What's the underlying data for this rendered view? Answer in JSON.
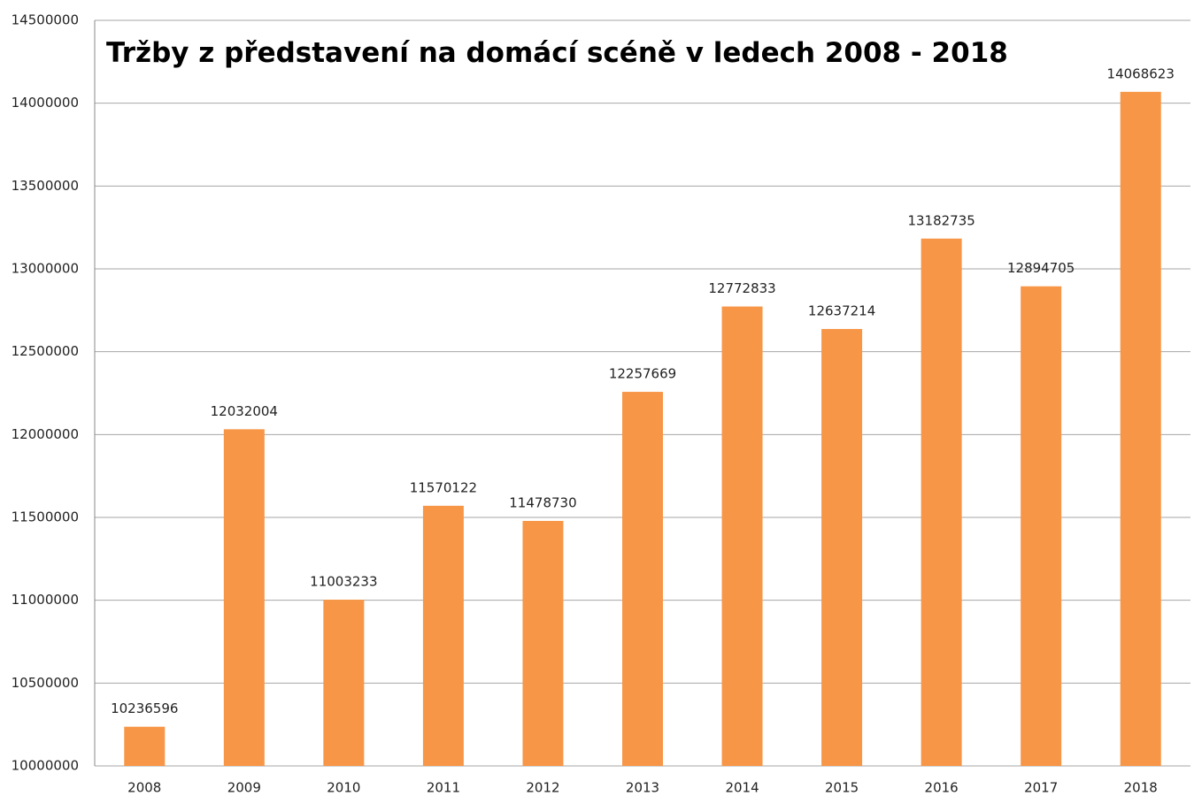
{
  "chart_data": {
    "type": "bar",
    "title": "Tržby z představení na domácí scéně v ledech 2008 - 2018",
    "categories": [
      "2008",
      "2009",
      "2010",
      "2011",
      "2012",
      "2013",
      "2014",
      "2015",
      "2016",
      "2017",
      "2018"
    ],
    "values": [
      10236596,
      12032004,
      11003233,
      11570122,
      11478730,
      12257669,
      12772833,
      12637214,
      13182735,
      12894705,
      14068623
    ],
    "color": "#f79646",
    "ylim": [
      10000000,
      14500000
    ],
    "yticks": [
      10000000,
      10500000,
      11000000,
      11500000,
      12000000,
      12500000,
      13000000,
      13500000,
      14000000,
      14500000
    ],
    "grid": true
  }
}
